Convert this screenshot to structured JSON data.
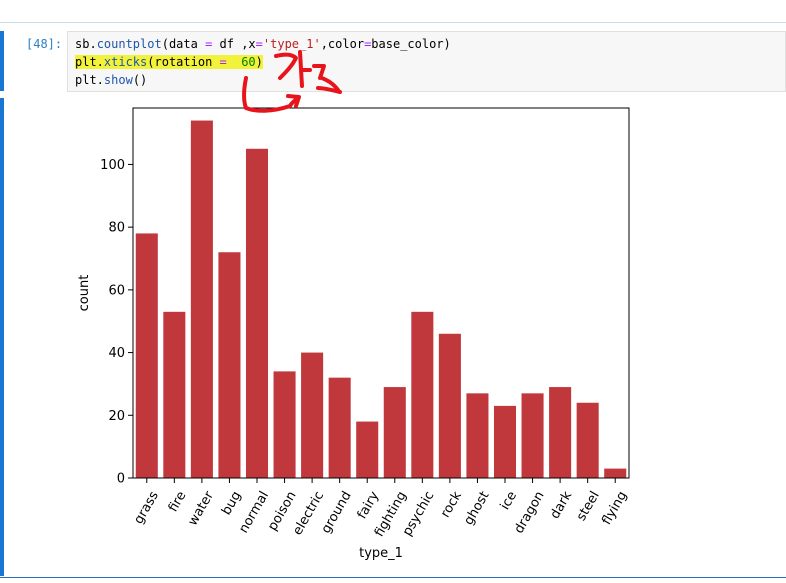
{
  "cell": {
    "prompt": "[48]:",
    "lines": [
      {
        "parts": [
          {
            "t": "sb.",
            "c": ""
          },
          {
            "t": "countplot",
            "c": "tok-fn"
          },
          {
            "t": "(data ",
            "c": ""
          },
          {
            "t": "=",
            "c": "tok-op"
          },
          {
            "t": " df ,x",
            "c": ""
          },
          {
            "t": "=",
            "c": "tok-op"
          },
          {
            "t": "'type_1'",
            "c": "tok-str"
          },
          {
            "t": ",color",
            "c": ""
          },
          {
            "t": "=",
            "c": "tok-op"
          },
          {
            "t": "base_color)",
            "c": ""
          }
        ]
      },
      {
        "highlight": true,
        "parts": [
          {
            "t": "plt.",
            "c": ""
          },
          {
            "t": "xticks",
            "c": "tok-fn"
          },
          {
            "t": "(rotation ",
            "c": ""
          },
          {
            "t": "=",
            "c": "tok-op"
          },
          {
            "t": "  ",
            "c": ""
          },
          {
            "t": "60",
            "c": "tok-num"
          },
          {
            "t": ")",
            "c": ""
          }
        ]
      },
      {
        "parts": [
          {
            "t": "plt.",
            "c": ""
          },
          {
            "t": "show",
            "c": "tok-fn"
          },
          {
            "t": "()",
            "c": ""
          }
        ]
      }
    ]
  },
  "annotation_color": "#e8141c",
  "chart_data": {
    "type": "bar",
    "categories": [
      "grass",
      "fire",
      "water",
      "bug",
      "normal",
      "poison",
      "electric",
      "ground",
      "fairy",
      "fighting",
      "psychic",
      "rock",
      "ghost",
      "ice",
      "dragon",
      "dark",
      "steel",
      "flying"
    ],
    "values": [
      78,
      53,
      114,
      72,
      105,
      34,
      40,
      32,
      18,
      29,
      53,
      46,
      27,
      23,
      27,
      29,
      24,
      3
    ],
    "xlabel": "type_1",
    "ylabel": "count",
    "ylim": [
      0,
      118
    ],
    "yticks": [
      0,
      20,
      40,
      60,
      80,
      100
    ],
    "xtick_rotation": 60,
    "bar_color": "#c0383b",
    "grid": false
  }
}
